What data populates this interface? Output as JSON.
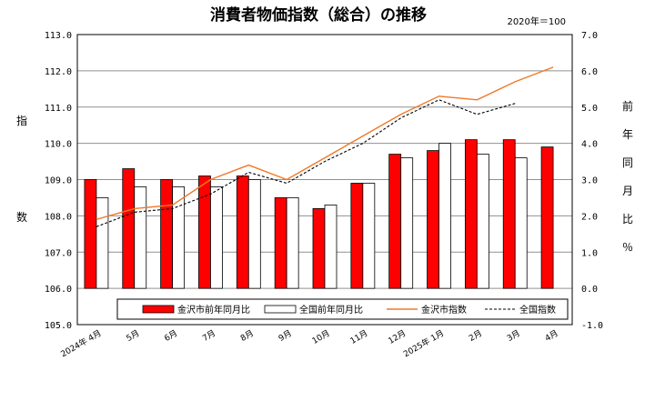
{
  "chart_data": {
    "type": "bar",
    "title": "消費者物価指数（総合）の推移",
    "base_note": "2020年＝100",
    "categories": [
      "2024年 4月",
      "5月",
      "6月",
      "7月",
      "8月",
      "9月",
      "10月",
      "11月",
      "12月",
      "2025年 1月",
      "2月",
      "3月",
      "4月"
    ],
    "left_axis": {
      "label": [
        "指",
        "数"
      ],
      "ylim": [
        105.0,
        113.0
      ],
      "ticks": [
        "113.0",
        "112.0",
        "111.0",
        "110.0",
        "109.0",
        "108.0",
        "107.0",
        "106.0",
        "105.0"
      ]
    },
    "right_axis": {
      "label": [
        "前",
        "年",
        "同",
        "月",
        "比",
        "％"
      ],
      "ylim": [
        -1.0,
        7.0
      ],
      "ticks": [
        "7.0",
        "6.0",
        "5.0",
        "4.0",
        "3.0",
        "2.0",
        "1.0",
        "0.0",
        "-1.0"
      ]
    },
    "series": [
      {
        "name": "金沢市前年同月比",
        "type": "bar",
        "axis": "right",
        "color": "#ff0000",
        "values": [
          3.0,
          3.3,
          3.0,
          3.1,
          3.1,
          2.5,
          2.2,
          2.9,
          3.7,
          3.8,
          4.1,
          4.1,
          3.9
        ]
      },
      {
        "name": "全国前年同月比",
        "type": "bar",
        "axis": "right",
        "color": "#ffffff",
        "values": [
          2.5,
          2.8,
          2.8,
          2.8,
          3.0,
          2.5,
          2.3,
          2.9,
          3.6,
          4.0,
          3.7,
          3.6,
          null
        ]
      },
      {
        "name": "金沢市指数",
        "type": "line",
        "axis": "left",
        "color": "#f07828",
        "dash": "solid",
        "values": [
          107.9,
          108.2,
          108.3,
          109.0,
          109.4,
          109.0,
          109.6,
          110.2,
          110.8,
          111.3,
          111.2,
          111.7,
          112.1
        ]
      },
      {
        "name": "全国指数",
        "type": "line",
        "axis": "left",
        "color": "#000000",
        "dash": "dashed",
        "values": [
          107.7,
          108.1,
          108.2,
          108.6,
          109.2,
          108.9,
          109.5,
          110.0,
          110.7,
          111.2,
          110.8,
          111.1,
          null
        ]
      }
    ],
    "grid": true,
    "legend_position": "bottom-right"
  }
}
